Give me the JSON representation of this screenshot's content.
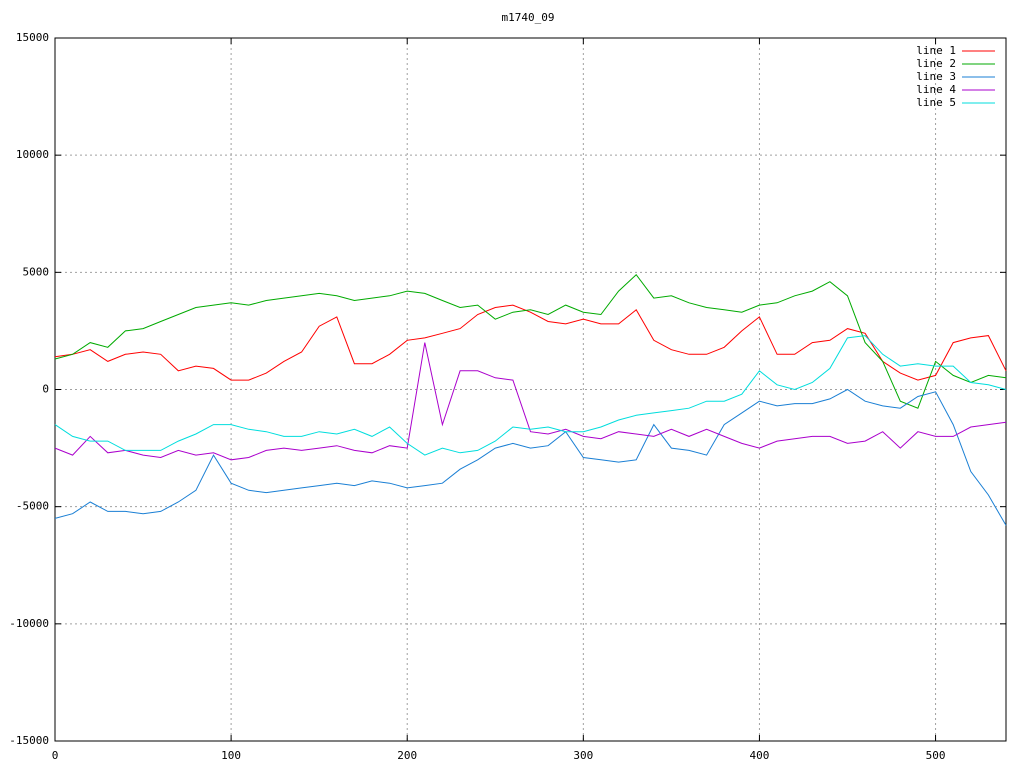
{
  "chart_data": {
    "type": "line",
    "title": "m1740_09",
    "x": [
      0,
      10,
      20,
      30,
      40,
      50,
      60,
      70,
      80,
      90,
      100,
      110,
      120,
      130,
      140,
      150,
      160,
      170,
      180,
      190,
      200,
      210,
      220,
      230,
      240,
      250,
      260,
      270,
      280,
      290,
      300,
      310,
      320,
      330,
      340,
      350,
      360,
      370,
      380,
      390,
      400,
      410,
      420,
      430,
      440,
      450,
      460,
      470,
      480,
      490,
      500,
      510,
      520,
      530,
      540
    ],
    "series": [
      {
        "name": "line 1",
        "color": "#ff0000",
        "values": [
          1400,
          1500,
          1700,
          1200,
          1500,
          1600,
          1500,
          800,
          1000,
          900,
          400,
          400,
          700,
          1200,
          1600,
          2700,
          3100,
          1100,
          1100,
          1500,
          2100,
          2200,
          2400,
          2600,
          3200,
          3500,
          3600,
          3300,
          2900,
          2800,
          3000,
          2800,
          2800,
          3400,
          2100,
          1700,
          1500,
          1500,
          1800,
          2500,
          3100,
          1500,
          1500,
          2000,
          2100,
          2600,
          2400,
          1200,
          700,
          400,
          600,
          2000,
          2200,
          2300,
          800
        ]
      },
      {
        "name": "line 2",
        "color": "#00aa00",
        "values": [
          1300,
          1500,
          2000,
          1800,
          2500,
          2600,
          2900,
          3200,
          3500,
          3600,
          3700,
          3600,
          3800,
          3900,
          4000,
          4100,
          4000,
          3800,
          3900,
          4000,
          4200,
          4100,
          3800,
          3500,
          3600,
          3000,
          3300,
          3400,
          3200,
          3600,
          3300,
          3200,
          4200,
          4900,
          3900,
          4000,
          3700,
          3500,
          3400,
          3300,
          3600,
          3700,
          4000,
          4200,
          4600,
          4000,
          2000,
          1200,
          -500,
          -800,
          1200,
          600,
          300,
          600,
          500
        ]
      },
      {
        "name": "line 3",
        "color": "#1a7fd4",
        "values": [
          -5500,
          -5300,
          -4800,
          -5200,
          -5200,
          -5300,
          -5200,
          -4800,
          -4300,
          -2800,
          -4000,
          -4300,
          -4400,
          -4300,
          -4200,
          -4100,
          -4000,
          -4100,
          -3900,
          -4000,
          -4200,
          -4100,
          -4000,
          -3400,
          -3000,
          -2500,
          -2300,
          -2500,
          -2400,
          -1800,
          -2900,
          -3000,
          -3100,
          -3000,
          -1500,
          -2500,
          -2600,
          -2800,
          -1500,
          -1000,
          -500,
          -700,
          -600,
          -600,
          -400,
          0,
          -500,
          -700,
          -800,
          -300,
          -100,
          -1500,
          -3500,
          -4500,
          -5800
        ]
      },
      {
        "name": "line 4",
        "color": "#aa00cc",
        "values": [
          -2500,
          -2800,
          -2000,
          -2700,
          -2600,
          -2800,
          -2900,
          -2600,
          -2800,
          -2700,
          -3000,
          -2900,
          -2600,
          -2500,
          -2600,
          -2500,
          -2400,
          -2600,
          -2700,
          -2400,
          -2500,
          2000,
          -1500,
          800,
          800,
          500,
          400,
          -1800,
          -1900,
          -1700,
          -2000,
          -2100,
          -1800,
          -1900,
          -2000,
          -1700,
          -2000,
          -1700,
          -2000,
          -2300,
          -2500,
          -2200,
          -2100,
          -2000,
          -2000,
          -2300,
          -2200,
          -1800,
          -2500,
          -1800,
          -2000,
          -2000,
          -1600,
          -1500,
          -1400
        ]
      },
      {
        "name": "line 5",
        "color": "#00dddd",
        "values": [
          -1500,
          -2000,
          -2200,
          -2200,
          -2600,
          -2600,
          -2600,
          -2200,
          -1900,
          -1500,
          -1500,
          -1700,
          -1800,
          -2000,
          -2000,
          -1800,
          -1900,
          -1700,
          -2000,
          -1600,
          -2300,
          -2800,
          -2500,
          -2700,
          -2600,
          -2200,
          -1600,
          -1700,
          -1600,
          -1800,
          -1800,
          -1600,
          -1300,
          -1100,
          -1000,
          -900,
          -800,
          -500,
          -500,
          -200,
          800,
          200,
          0,
          300,
          900,
          2200,
          2300,
          1500,
          1000,
          1100,
          1000,
          1000,
          300,
          200,
          0
        ]
      }
    ],
    "xlim": [
      0,
      540
    ],
    "xticks": [
      0,
      100,
      200,
      300,
      400,
      500
    ],
    "ylim": [
      -15000,
      15000
    ],
    "yticks": [
      -15000,
      -10000,
      -5000,
      0,
      5000,
      10000,
      15000
    ],
    "grid": true,
    "legend": "top-right"
  }
}
